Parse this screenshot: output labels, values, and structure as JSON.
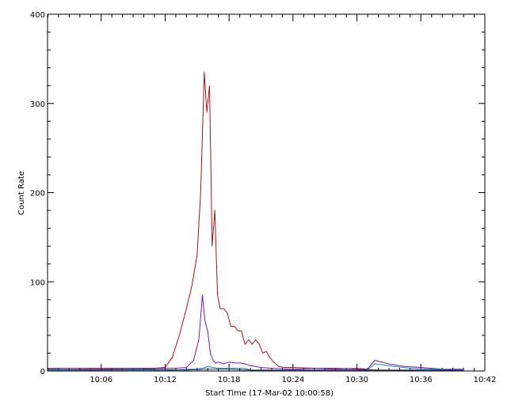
{
  "chart_data": {
    "type": "line",
    "title": "",
    "xlabel": "Start Time (17-Mar-02 10:00:58)",
    "ylabel": "Count Rate",
    "x_unit": "time",
    "xlim": [
      "10:00:58",
      "10:42:00"
    ],
    "ylim": [
      0,
      400
    ],
    "x_tick_labels": [
      "10:06",
      "10:12",
      "10:18",
      "10:24",
      "10:30",
      "10:36",
      "10:42"
    ],
    "y_tick_labels": [
      "0",
      "100",
      "200",
      "300",
      "400"
    ],
    "y_tick_values": [
      0,
      100,
      200,
      300,
      400
    ],
    "grid": false,
    "legend": "none",
    "series": [
      {
        "color": "#b01010",
        "x": [
          "10:01:00",
          "10:05:00",
          "10:10:00",
          "10:12:00",
          "10:12:40",
          "10:13:20",
          "10:14:00",
          "10:14:30",
          "10:15:00",
          "10:15:20",
          "10:15:40",
          "10:15:55",
          "10:16:10",
          "10:16:25",
          "10:16:40",
          "10:16:55",
          "10:17:10",
          "10:17:30",
          "10:17:50",
          "10:18:10",
          "10:18:30",
          "10:18:50",
          "10:19:10",
          "10:19:30",
          "10:19:50",
          "10:20:10",
          "10:20:30",
          "10:20:50",
          "10:21:10",
          "10:21:30",
          "10:21:50",
          "10:22:10",
          "10:22:40",
          "10:23:10",
          "10:24:00",
          "10:26:00",
          "10:28:00",
          "10:30:00",
          "10:32:00",
          "10:34:00",
          "10:36:00",
          "10:38:00",
          "10:40:00"
        ],
        "values": [
          1,
          2,
          2,
          4,
          15,
          40,
          70,
          95,
          130,
          200,
          335,
          290,
          320,
          140,
          180,
          85,
          70,
          70,
          65,
          50,
          50,
          45,
          45,
          30,
          35,
          30,
          35,
          30,
          20,
          22,
          15,
          10,
          5,
          4,
          4,
          3,
          3,
          2,
          1,
          1,
          1,
          1,
          1
        ]
      },
      {
        "color": "#7a10c8",
        "x": [
          "10:01:00",
          "10:05:00",
          "10:10:00",
          "10:13:00",
          "10:14:00",
          "10:14:40",
          "10:15:10",
          "10:15:30",
          "10:15:45",
          "10:16:00",
          "10:16:15",
          "10:16:30",
          "10:16:45",
          "10:17:00",
          "10:17:30",
          "10:18:00",
          "10:18:30",
          "10:19:00",
          "10:19:30",
          "10:20:00",
          "10:21:00",
          "10:22:00",
          "10:24:00",
          "10:26:00",
          "10:28:00",
          "10:30:00",
          "10:31:00",
          "10:31:40",
          "10:33:00",
          "10:34:30",
          "10:36:00",
          "10:38:00",
          "10:40:00"
        ],
        "values": [
          3,
          3,
          3,
          3,
          4,
          12,
          35,
          85,
          55,
          45,
          20,
          12,
          9,
          10,
          8,
          10,
          9,
          9,
          8,
          6,
          4,
          3,
          2,
          3,
          2,
          3,
          2,
          12,
          8,
          5,
          4,
          2,
          2
        ]
      },
      {
        "color": "#1090a0",
        "x": [
          "10:01:00",
          "10:05:00",
          "10:10:00",
          "10:13:00",
          "10:14:00",
          "10:15:00",
          "10:15:30",
          "10:16:00",
          "10:16:30",
          "10:17:00",
          "10:18:00",
          "10:19:00",
          "10:19:30",
          "10:20:00",
          "10:22:00",
          "10:24:00",
          "10:26:00",
          "10:28:00",
          "10:30:00",
          "10:31:00",
          "10:31:40",
          "10:33:00",
          "10:35:00",
          "10:37:00",
          "10:40:00"
        ],
        "values": [
          1,
          1,
          1,
          1,
          2,
          2,
          3,
          5,
          4,
          3,
          3,
          3,
          3,
          1,
          1,
          1,
          1,
          1,
          1,
          1,
          8,
          6,
          3,
          2,
          1
        ]
      },
      {
        "color": "#203080",
        "x": [
          "10:01:00",
          "10:05:00",
          "10:10:00",
          "10:14:00",
          "10:16:00",
          "10:18:00",
          "10:20:00",
          "10:24:00",
          "10:28:00",
          "10:32:00",
          "10:36:00",
          "10:40:00"
        ],
        "values": [
          2,
          1,
          2,
          1,
          2,
          2,
          1,
          1,
          1,
          1,
          1,
          1
        ]
      }
    ]
  }
}
